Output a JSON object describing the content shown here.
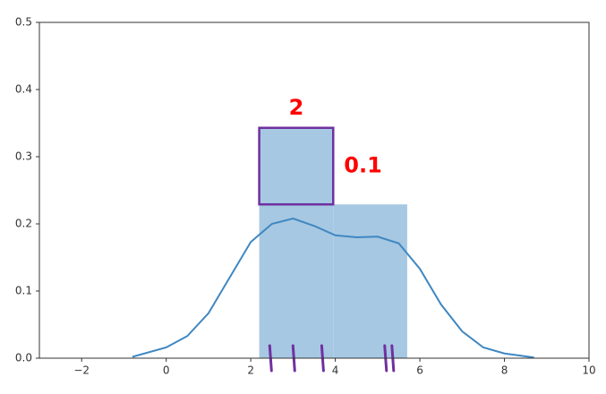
{
  "chart_data": {
    "type": "histogram",
    "bins": [
      2.2,
      3.95,
      5.7
    ],
    "values": [
      0.343,
      0.229
    ],
    "color": "#a6c8e2",
    "kde": {
      "color": "#3f87c2",
      "x": [
        -0.8,
        0,
        0.5,
        1,
        1.5,
        2,
        2.5,
        3,
        3.5,
        4,
        4.5,
        5,
        5.5,
        6,
        6.5,
        7,
        7.5,
        8,
        8.7
      ],
      "values": [
        0.002,
        0.016,
        0.033,
        0.067,
        0.12,
        0.173,
        0.2,
        0.208,
        0.197,
        0.183,
        0.18,
        0.181,
        0.171,
        0.133,
        0.08,
        0.04,
        0.016,
        0.007,
        0.001
      ]
    },
    "rug": {
      "color": "#7030a0",
      "x": [
        2.49,
        3.04,
        3.72,
        5.21,
        5.38
      ]
    },
    "annotations": {
      "color": "#ff0000",
      "box_color": "#7030a0",
      "width_label": "2",
      "height_label": "0.1"
    },
    "xlim": [
      -3,
      10
    ],
    "ylim": [
      0,
      0.5
    ],
    "xticks": [
      {
        "value": -2,
        "label": "−2"
      },
      0,
      2,
      4,
      6,
      8,
      10
    ],
    "yticks": [
      {
        "value": 0,
        "label": "0.0"
      },
      0.1,
      0.2,
      0.3,
      0.4,
      0.5
    ]
  }
}
